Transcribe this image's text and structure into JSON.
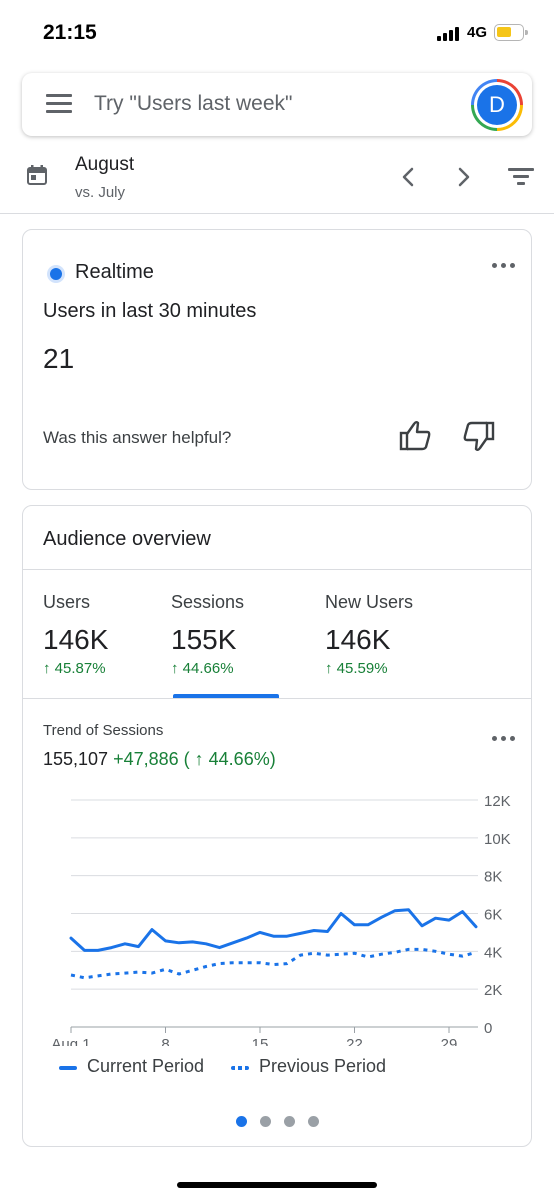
{
  "status_bar": {
    "time": "21:15",
    "network": "4G"
  },
  "search": {
    "placeholder": "Try \"Users last week\"",
    "avatar_letter": "D"
  },
  "date_range": {
    "title": "August",
    "comparison": "vs. July"
  },
  "realtime_card": {
    "label": "Realtime",
    "subtitle": "Users in last 30 minutes",
    "value": "21",
    "feedback_question": "Was this answer helpful?"
  },
  "audience_card": {
    "title": "Audience overview",
    "metrics": [
      {
        "label": "Users",
        "value": "146K",
        "change": "↑ 45.87%"
      },
      {
        "label": "Sessions",
        "value": "155K",
        "change": "↑ 44.66%"
      },
      {
        "label": "New Users",
        "value": "146K",
        "change": "↑ 45.59%"
      }
    ],
    "selected_metric": "Sessions",
    "trend": {
      "title": "Trend of Sessions",
      "total": "155,107",
      "delta": "+47,886 ( ↑ 44.66%)"
    },
    "legend": {
      "current": "Current Period",
      "previous": "Previous Period"
    },
    "pagination": {
      "count": 4,
      "active": 0
    }
  },
  "colors": {
    "accent": "#1a73e8",
    "positive": "#188038",
    "text": "#202124",
    "muted": "#5f6368"
  },
  "chart_data": {
    "type": "line",
    "x": [
      1,
      2,
      3,
      4,
      5,
      6,
      7,
      8,
      9,
      10,
      11,
      12,
      13,
      14,
      15,
      16,
      17,
      18,
      19,
      20,
      21,
      22,
      23,
      24,
      25,
      26,
      27,
      28,
      29,
      30,
      31
    ],
    "x_ticks": [
      {
        "value": 1,
        "label": "Aug 1"
      },
      {
        "value": 8,
        "label": "8"
      },
      {
        "value": 15,
        "label": "15"
      },
      {
        "value": 22,
        "label": "22"
      },
      {
        "value": 29,
        "label": "29"
      }
    ],
    "y_ticks": [
      {
        "value": 0,
        "label": "0"
      },
      {
        "value": 2000,
        "label": "2K"
      },
      {
        "value": 4000,
        "label": "4K"
      },
      {
        "value": 6000,
        "label": "6K"
      },
      {
        "value": 8000,
        "label": "8K"
      },
      {
        "value": 10000,
        "label": "10K"
      },
      {
        "value": 12000,
        "label": "12K"
      }
    ],
    "ylim": [
      0,
      12000
    ],
    "grid": true,
    "legend_position": "bottom",
    "series": [
      {
        "name": "Current Period",
        "style": "solid",
        "color": "#1a73e8",
        "values": [
          4700,
          4050,
          4050,
          4200,
          4400,
          4250,
          5150,
          4550,
          4450,
          4500,
          4400,
          4200,
          4450,
          4700,
          5000,
          4800,
          4800,
          4950,
          5100,
          5050,
          6000,
          5400,
          5400,
          5800,
          6150,
          6200,
          5350,
          5750,
          5650,
          6100,
          5300
        ]
      },
      {
        "name": "Previous Period",
        "style": "dotted",
        "color": "#1a73e8",
        "values": [
          2750,
          2600,
          2700,
          2800,
          2850,
          2900,
          2850,
          3050,
          2800,
          3000,
          3200,
          3350,
          3400,
          3400,
          3400,
          3300,
          3350,
          3800,
          3900,
          3800,
          3850,
          3900,
          3700,
          3850,
          3950,
          4100,
          4100,
          4000,
          3850,
          3750,
          3950
        ]
      }
    ]
  }
}
